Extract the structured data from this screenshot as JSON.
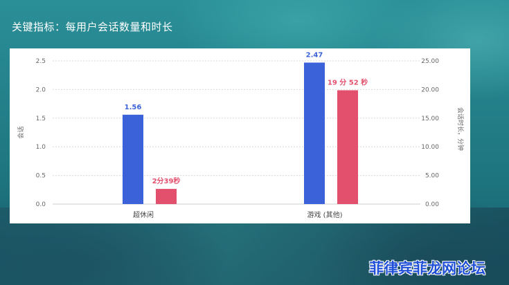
{
  "headline": "关键指标：每用户会话数量和时长",
  "watermark": "菲律宾菲龙网论坛",
  "colors": {
    "sessions": "#3b62d8",
    "duration": "#e2506e"
  },
  "chart_data": {
    "type": "bar",
    "categories": [
      "超休闲",
      "游戏 (其他)"
    ],
    "series": [
      {
        "axis": "left",
        "values": [
          1.56,
          2.47
        ],
        "labels": [
          "1.56",
          "2.47"
        ]
      },
      {
        "axis": "right",
        "values": [
          2.65,
          19.87
        ],
        "labels": [
          "2分39秒",
          "19 分 52 秒"
        ]
      }
    ],
    "y_left": {
      "label": "会话",
      "range": [
        0,
        2.5
      ],
      "ticks": [
        "0.0",
        "0.5",
        "1.0",
        "1.5",
        "2.0",
        "2.5"
      ]
    },
    "y_right": {
      "label": "会话时长，分钟",
      "range": [
        0,
        25
      ],
      "ticks": [
        "0.00",
        "5.00",
        "10.00",
        "15.00",
        "20.00",
        "25.00"
      ]
    },
    "grid": true,
    "legend": "none"
  }
}
